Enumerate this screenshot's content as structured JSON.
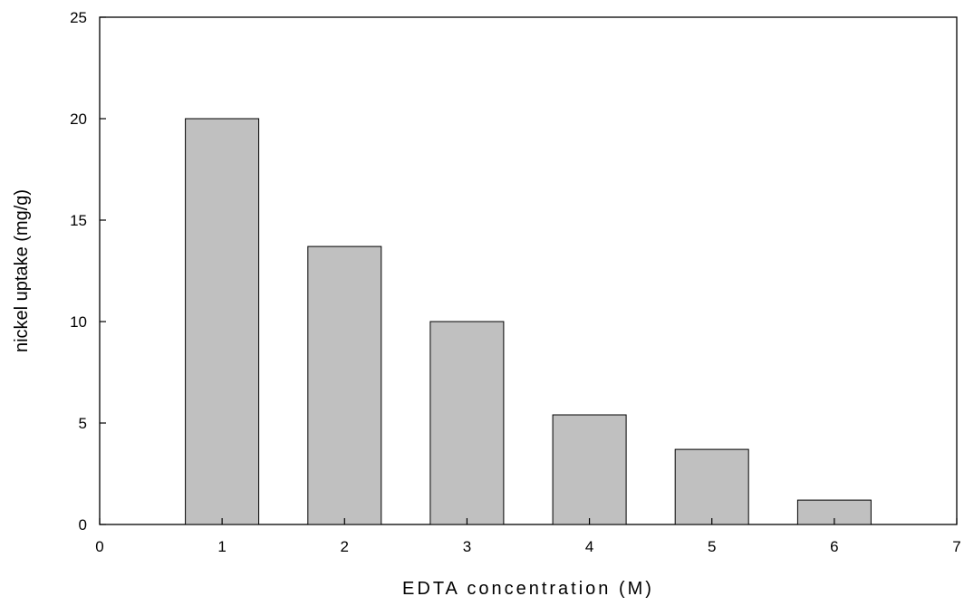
{
  "chart_data": {
    "type": "bar",
    "xlabel": "EDTA  concentration (M)",
    "ylabel": "nickel uptake (mg/g)",
    "xlim": [
      0,
      7
    ],
    "ylim": [
      0,
      25
    ],
    "xticks": [
      0,
      1,
      2,
      3,
      4,
      5,
      6,
      7
    ],
    "yticks": [
      0,
      5,
      10,
      15,
      20,
      25
    ],
    "grid": false,
    "bar_color": "#c0c0c0",
    "bar_edge_color": "#000000",
    "points": [
      {
        "x": 1,
        "y": 20.0
      },
      {
        "x": 2,
        "y": 13.7
      },
      {
        "x": 3,
        "y": 10.0
      },
      {
        "x": 4,
        "y": 5.4
      },
      {
        "x": 5,
        "y": 3.7
      },
      {
        "x": 6,
        "y": 1.2
      }
    ]
  }
}
